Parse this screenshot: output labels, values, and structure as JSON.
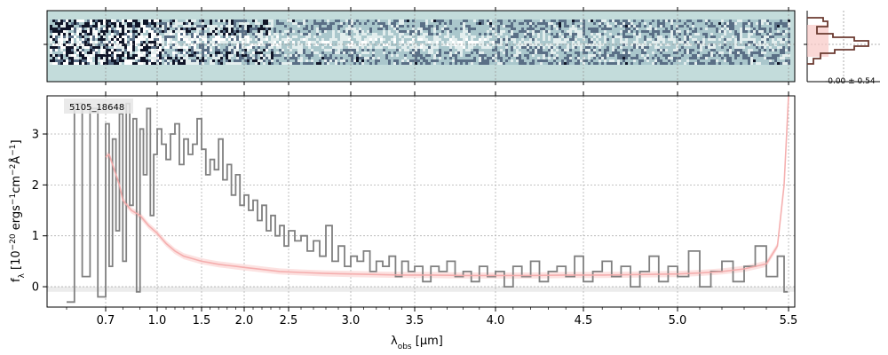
{
  "chart_data": {
    "type": "line",
    "object_label": "5105_18648",
    "xlabel": {
      "prefix": "λ",
      "sub": "obs",
      "suffix": " [μm]"
    },
    "ylabel": {
      "main": "f",
      "sub": "λ",
      "unit": " [10",
      "exp1": "−20",
      "mid1": " ergs",
      "exp2": "−1",
      "mid2": "cm",
      "exp3": "−2",
      "mid3": "Å",
      "exp4": "−1",
      "close": "]"
    },
    "x_ticks": [
      "0.7",
      "1.0",
      "1.5",
      "2.0",
      "2.5",
      "3.0",
      "3.5",
      "4.0",
      "4.5",
      "5.0",
      "5.5"
    ],
    "x_tick_values": [
      0.7,
      1.0,
      1.5,
      2.0,
      2.5,
      3.0,
      3.5,
      4.0,
      4.5,
      5.0,
      5.5
    ],
    "y_ticks": [
      "0",
      "1",
      "2",
      "3"
    ],
    "y_tick_values": [
      0,
      1,
      2,
      3
    ],
    "xlim": [
      0.55,
      5.52
    ],
    "ylim": [
      -0.4,
      3.75
    ],
    "grid": true,
    "hist_label": "-0.00 ± 0.54",
    "colors": {
      "spectrum": "#808080",
      "model": "#f4a9a8",
      "model_band": "#fbd5d4",
      "zero_band": "#ececec",
      "spec2d_bg": "#c3dcdb",
      "hist_line": "#6b3a30",
      "hist_fill": "#f8c8c4"
    },
    "series": [
      {
        "kind": "data",
        "x": [
          0.6,
          0.62,
          0.64,
          0.66,
          0.68,
          0.7,
          0.72,
          0.74,
          0.76,
          0.78,
          0.8,
          0.82,
          0.84,
          0.86,
          0.88,
          0.9,
          0.92,
          0.94,
          0.96,
          0.98,
          1.0,
          1.05,
          1.1,
          1.15,
          1.2,
          1.25,
          1.3,
          1.35,
          1.4,
          1.45,
          1.5,
          1.55,
          1.6,
          1.65,
          1.7,
          1.75,
          1.8,
          1.85,
          1.9,
          1.95,
          2.0,
          2.05,
          2.1,
          2.15,
          2.2,
          2.25,
          2.3,
          2.35,
          2.4,
          2.45,
          2.5,
          2.55,
          2.6,
          2.65,
          2.7,
          2.75,
          2.8,
          2.85,
          2.9,
          2.95,
          3.0,
          3.05,
          3.1,
          3.15,
          3.2,
          3.25,
          3.3,
          3.35,
          3.4,
          3.45,
          3.5,
          3.55,
          3.6,
          3.65,
          3.7,
          3.75,
          3.8,
          3.85,
          3.9,
          3.95,
          4.0,
          4.05,
          4.1,
          4.15,
          4.2,
          4.25,
          4.3,
          4.35,
          4.4,
          4.45,
          4.5,
          4.55,
          4.6,
          4.65,
          4.7,
          4.75,
          4.8,
          4.85,
          4.9,
          4.95,
          5.0,
          5.05,
          5.1,
          5.15,
          5.2,
          5.25,
          5.3,
          5.35,
          5.4,
          5.45,
          5.48
        ],
        "y": [
          -0.3,
          3.6,
          0.2,
          3.5,
          -0.2,
          3.2,
          0.4,
          2.9,
          1.1,
          3.4,
          0.5,
          3.6,
          1.6,
          3.3,
          -0.1,
          3.1,
          2.2,
          3.5,
          1.4,
          2.6,
          3.1,
          2.8,
          2.5,
          3.0,
          3.2,
          2.4,
          2.9,
          2.6,
          2.8,
          3.3,
          2.7,
          2.2,
          2.5,
          2.3,
          2.9,
          2.1,
          2.4,
          1.8,
          2.2,
          1.6,
          1.8,
          1.5,
          1.7,
          1.3,
          1.6,
          1.1,
          1.4,
          1.0,
          1.2,
          0.8,
          1.1,
          0.9,
          1.0,
          0.7,
          0.9,
          0.6,
          1.2,
          0.5,
          0.8,
          0.4,
          0.6,
          0.5,
          0.7,
          0.3,
          0.5,
          0.4,
          0.6,
          0.2,
          0.5,
          0.3,
          0.4,
          0.1,
          0.4,
          0.3,
          0.5,
          0.2,
          0.3,
          0.1,
          0.4,
          0.2,
          0.3,
          0.0,
          0.4,
          0.2,
          0.5,
          0.1,
          0.3,
          0.4,
          0.2,
          0.6,
          0.1,
          0.3,
          0.5,
          0.2,
          0.4,
          0.0,
          0.3,
          0.6,
          0.1,
          0.4,
          0.2,
          0.7,
          0.0,
          0.3,
          0.5,
          0.1,
          0.4,
          0.8,
          0.2,
          0.6,
          -0.1
        ]
      },
      {
        "kind": "model",
        "x": [
          0.7,
          0.72,
          0.75,
          0.78,
          0.8,
          0.85,
          0.9,
          0.95,
          1.0,
          1.05,
          1.1,
          1.2,
          1.3,
          1.4,
          1.5,
          1.6,
          1.7,
          1.8,
          1.9,
          2.0,
          2.2,
          2.4,
          2.6,
          2.8,
          3.0,
          3.2,
          3.4,
          3.6,
          3.8,
          4.0,
          4.2,
          4.4,
          4.6,
          4.8,
          5.0,
          5.1,
          5.2,
          5.3,
          5.4,
          5.45,
          5.48,
          5.5
        ],
        "y": [
          2.55,
          2.6,
          2.3,
          2.0,
          1.7,
          1.5,
          1.4,
          1.2,
          1.05,
          0.95,
          0.85,
          0.7,
          0.6,
          0.55,
          0.5,
          0.47,
          0.44,
          0.42,
          0.4,
          0.38,
          0.34,
          0.3,
          0.28,
          0.26,
          0.25,
          0.24,
          0.23,
          0.23,
          0.22,
          0.22,
          0.22,
          0.23,
          0.23,
          0.24,
          0.25,
          0.27,
          0.3,
          0.35,
          0.45,
          0.8,
          2.0,
          3.75
        ]
      }
    ]
  }
}
